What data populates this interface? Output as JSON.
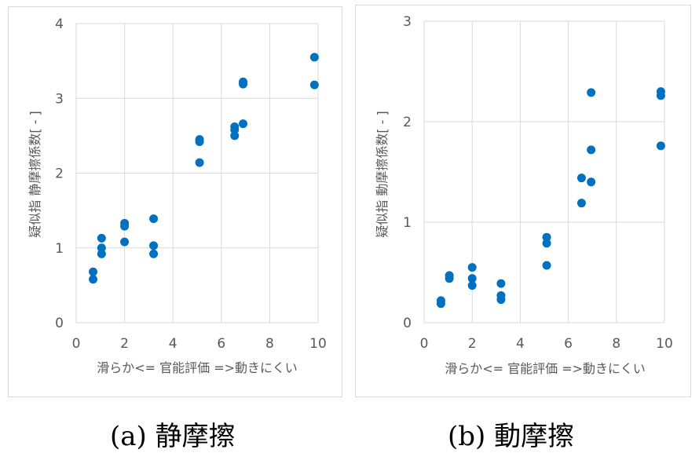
{
  "charts": {
    "a": {
      "caption": "(a) 静摩擦",
      "chart_data": {
        "type": "scatter",
        "xlabel": "滑らか<= 官能評価 =>動きにくい",
        "ylabel": "疑似指 静摩擦係数[ - ]",
        "xlim": [
          0,
          10
        ],
        "ylim": [
          0,
          4
        ],
        "xticks": [
          "0",
          "2",
          "4",
          "6",
          "8",
          "10"
        ],
        "yticks": [
          "0",
          "1",
          "2",
          "3",
          "4"
        ],
        "grid": true,
        "marker_color": "#0070C0",
        "series": [
          {
            "points": [
              [
                0.7,
                0.68
              ],
              [
                0.7,
                0.58
              ],
              [
                1.05,
                1.13
              ],
              [
                1.05,
                1.0
              ],
              [
                1.05,
                0.92
              ],
              [
                2.0,
                1.33
              ],
              [
                2.0,
                1.29
              ],
              [
                2.0,
                1.08
              ],
              [
                3.2,
                1.39
              ],
              [
                3.2,
                1.03
              ],
              [
                3.2,
                0.92
              ],
              [
                5.1,
                2.45
              ],
              [
                5.1,
                2.42
              ],
              [
                5.1,
                2.14
              ],
              [
                6.55,
                2.62
              ],
              [
                6.55,
                2.58
              ],
              [
                6.55,
                2.5
              ],
              [
                6.9,
                3.22
              ],
              [
                6.9,
                3.19
              ],
              [
                6.9,
                2.66
              ],
              [
                9.85,
                3.55
              ],
              [
                9.85,
                3.18
              ]
            ]
          }
        ]
      }
    },
    "b": {
      "caption": "(b) 動摩擦",
      "chart_data": {
        "type": "scatter",
        "xlabel": "滑らか<= 官能評価 =>動きにくい",
        "ylabel": "疑似指 動摩擦係数[ - ]",
        "xlim": [
          0,
          10
        ],
        "ylim": [
          0,
          3
        ],
        "xticks": [
          "0",
          "2",
          "4",
          "6",
          "8",
          "10"
        ],
        "yticks": [
          "0",
          "1",
          "2",
          "3"
        ],
        "grid": true,
        "marker_color": "#0070C0",
        "series": [
          {
            "points": [
              [
                0.7,
                0.22
              ],
              [
                0.7,
                0.19
              ],
              [
                1.05,
                0.47
              ],
              [
                1.05,
                0.44
              ],
              [
                2.0,
                0.55
              ],
              [
                2.0,
                0.44
              ],
              [
                2.0,
                0.37
              ],
              [
                3.2,
                0.39
              ],
              [
                3.2,
                0.27
              ],
              [
                3.2,
                0.23
              ],
              [
                5.1,
                0.85
              ],
              [
                5.1,
                0.79
              ],
              [
                5.1,
                0.57
              ],
              [
                6.55,
                1.44
              ],
              [
                6.55,
                1.19
              ],
              [
                6.95,
                2.29
              ],
              [
                6.95,
                1.72
              ],
              [
                6.95,
                1.4
              ],
              [
                9.85,
                2.3
              ],
              [
                9.85,
                2.26
              ],
              [
                9.85,
                1.76
              ]
            ]
          }
        ]
      }
    }
  }
}
